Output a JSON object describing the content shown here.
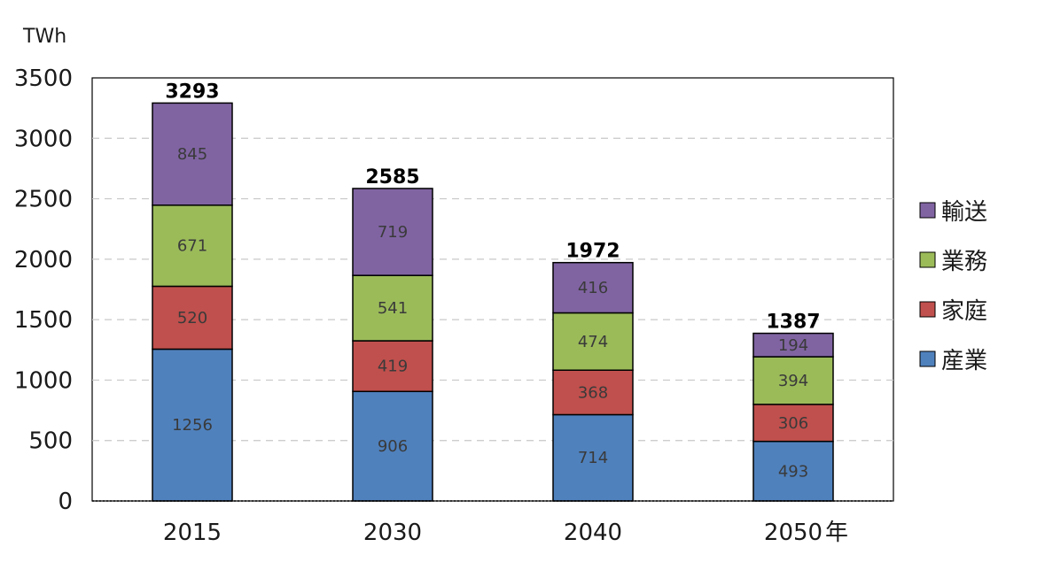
{
  "chart_data": {
    "type": "bar",
    "stacked": true,
    "ylabel": "TWh",
    "xlabel": "",
    "x_unit_suffix": "年",
    "ylim": [
      0,
      3500
    ],
    "yticks": [
      0,
      500,
      1000,
      1500,
      2000,
      2500,
      3000,
      3500
    ],
    "grid": true,
    "legend_position": "right",
    "categories": [
      "2015",
      "2030",
      "2040",
      "2050"
    ],
    "series": [
      {
        "name": "産業",
        "color": "#4f81bd",
        "values": [
          1256,
          906,
          714,
          493
        ]
      },
      {
        "name": "家庭",
        "color": "#c0504d",
        "values": [
          520,
          419,
          368,
          306
        ]
      },
      {
        "name": "業務",
        "color": "#9bbb59",
        "values": [
          671,
          541,
          474,
          394
        ]
      },
      {
        "name": "輸送",
        "color": "#8064a2",
        "values": [
          845,
          719,
          416,
          194
        ]
      }
    ],
    "totals": [
      3293,
      2585,
      1972,
      1387
    ]
  }
}
